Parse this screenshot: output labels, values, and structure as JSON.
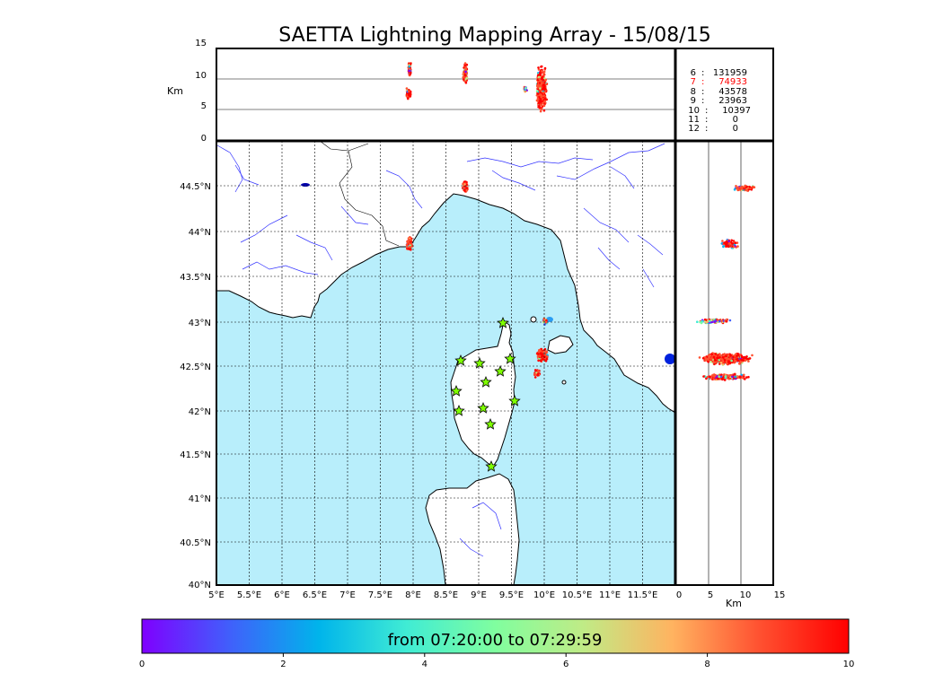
{
  "title": "SAETTA Lightning Mapping Array - 15/08/15",
  "top_panel": {
    "ylabel": "Km",
    "yticks": [
      "15",
      "10",
      "5",
      "0"
    ]
  },
  "side_panel": {
    "xlabel": "Km",
    "xticks": [
      "0",
      "5",
      "10",
      "15"
    ]
  },
  "map": {
    "lon_ticks": [
      "5°E",
      "5.5°E",
      "6°E",
      "6.5°E",
      "7°E",
      "7.5°E",
      "8°E",
      "8.5°E",
      "9°E",
      "9.5°E",
      "10°E",
      "10.5°E",
      "11°E",
      "11.5°E"
    ],
    "lat_ticks": [
      "44.5°N",
      "44°N",
      "43.5°N",
      "43°N",
      "42.5°N",
      "42°N",
      "41.5°N",
      "41°N",
      "40.5°N",
      "40°N"
    ],
    "sea_color": "#b8eefb",
    "land_color": "#ffffff",
    "river_color": "#3333ff",
    "station_color": "#7fff00"
  },
  "station_counts": [
    {
      "stations": "6",
      "count": "131959",
      "color": "#000000"
    },
    {
      "stations": "7",
      "count": "74933",
      "color": "#ff0000"
    },
    {
      "stations": "8",
      "count": "43578",
      "color": "#000000"
    },
    {
      "stations": "9",
      "count": "23963",
      "color": "#000000"
    },
    {
      "stations": "10",
      "count": "10397",
      "color": "#000000"
    },
    {
      "stations": "11",
      "count": "0",
      "color": "#000000"
    },
    {
      "stations": "12",
      "count": "0",
      "color": "#000000"
    }
  ],
  "colorbar": {
    "label": "from 07:20:00 to 07:29:59",
    "ticks": [
      "0",
      "2",
      "4",
      "6",
      "8",
      "10"
    ],
    "colors": [
      "#7f00ff",
      "#4060fb",
      "#00b4eb",
      "#40ecd4",
      "#80fe9f",
      "#c0eb86",
      "#ffb360",
      "#ff5030",
      "#ff0000"
    ]
  }
}
